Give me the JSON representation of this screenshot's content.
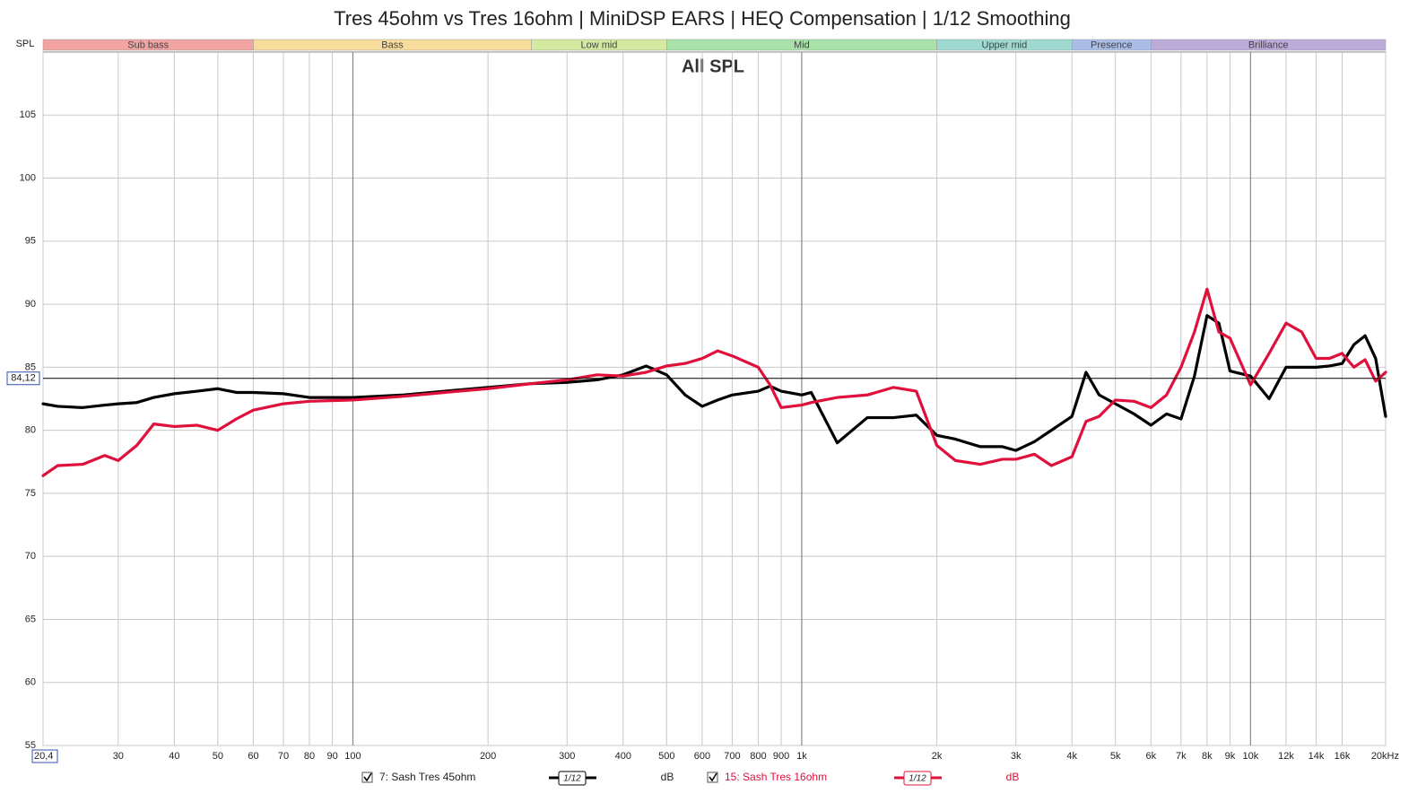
{
  "chart_data": {
    "type": "line",
    "title": "Tres 45ohm vs Tres 16ohm | MiniDSP EARS | HEQ Compensation | 1/12 Smoothing",
    "annotation": "All SPL",
    "y_label": "SPL",
    "log_x": true,
    "grid": true,
    "xlim": [
      20.4,
      20000
    ],
    "ylim": [
      55,
      110
    ],
    "yticks": [
      55,
      60,
      65,
      70,
      75,
      80,
      85,
      90,
      95,
      100,
      105
    ],
    "xticks": [
      {
        "value": 20.4,
        "label": "20,4"
      },
      30,
      40,
      50,
      60,
      70,
      80,
      90,
      100,
      200,
      300,
      400,
      500,
      600,
      700,
      800,
      900,
      {
        "value": 1000,
        "label": "1k"
      },
      {
        "value": 2000,
        "label": "2k"
      },
      {
        "value": 3000,
        "label": "3k"
      },
      {
        "value": 4000,
        "label": "4k"
      },
      {
        "value": 5000,
        "label": "5k"
      },
      {
        "value": 6000,
        "label": "6k"
      },
      {
        "value": 7000,
        "label": "7k"
      },
      {
        "value": 8000,
        "label": "8k"
      },
      {
        "value": 9000,
        "label": "9k"
      },
      {
        "value": 10000,
        "label": "10k"
      },
      {
        "value": 12000,
        "label": "12k"
      },
      {
        "value": 14000,
        "label": "14k"
      },
      {
        "value": 16000,
        "label": "16k"
      },
      {
        "value": 20000,
        "label": "20kHz"
      }
    ],
    "cursor": {
      "value": 84.12,
      "label": "84,12"
    },
    "bands": [
      {
        "name": "Sub bass",
        "from": 20.4,
        "to": 60,
        "color": "#f4a3a3"
      },
      {
        "name": "Bass",
        "from": 60,
        "to": 250,
        "color": "#f9dd9c"
      },
      {
        "name": "Low mid",
        "from": 250,
        "to": 500,
        "color": "#d3eaa0"
      },
      {
        "name": "Mid",
        "from": 500,
        "to": 2000,
        "color": "#a9e2a9"
      },
      {
        "name": "Upper mid",
        "from": 2000,
        "to": 4000,
        "color": "#9fdad2"
      },
      {
        "name": "Presence",
        "from": 4000,
        "to": 6000,
        "color": "#a9bde6"
      },
      {
        "name": "Brilliance",
        "from": 6000,
        "to": 20000,
        "color": "#bcaad8"
      }
    ],
    "x": [
      20.4,
      22,
      25,
      28,
      30,
      33,
      36,
      40,
      45,
      50,
      55,
      60,
      70,
      80,
      100,
      130,
      160,
      200,
      250,
      300,
      350,
      400,
      450,
      500,
      550,
      600,
      650,
      700,
      800,
      850,
      900,
      1000,
      1050,
      1200,
      1400,
      1600,
      1800,
      2000,
      2200,
      2500,
      2800,
      3000,
      3300,
      3600,
      4000,
      4300,
      4600,
      5000,
      5500,
      6000,
      6500,
      7000,
      7500,
      8000,
      8500,
      9000,
      10000,
      11000,
      12000,
      13000,
      14000,
      15000,
      16000,
      17000,
      18000,
      19000,
      20000
    ],
    "series": [
      {
        "name": "7: Sash Tres 45ohm",
        "color": "#000000",
        "smoothing": "1/12",
        "unit": "dB",
        "values": [
          82.1,
          81.9,
          81.8,
          82.0,
          82.1,
          82.2,
          82.6,
          82.9,
          83.1,
          83.3,
          83.0,
          83.0,
          82.9,
          82.6,
          82.6,
          82.8,
          83.1,
          83.4,
          83.7,
          83.8,
          84.0,
          84.4,
          85.1,
          84.4,
          82.8,
          81.9,
          82.4,
          82.8,
          83.1,
          83.5,
          83.1,
          82.8,
          83.0,
          79.0,
          81.0,
          81.0,
          81.2,
          79.6,
          79.3,
          78.7,
          78.7,
          78.4,
          79.1,
          80.0,
          81.1,
          84.6,
          82.8,
          82.1,
          81.3,
          80.4,
          81.3,
          80.9,
          84.3,
          89.1,
          88.5,
          84.7,
          84.3,
          82.5,
          85.0,
          85.0,
          85.0,
          85.1,
          85.3,
          86.8,
          87.5,
          85.7,
          81.1
        ]
      },
      {
        "name": "15: Sash Tres 16ohm",
        "color": "#e0103c",
        "smoothing": "1/12",
        "unit": "dB",
        "values": [
          76.4,
          77.2,
          77.3,
          78.0,
          77.6,
          78.8,
          80.5,
          80.3,
          80.4,
          80.0,
          80.9,
          81.6,
          82.1,
          82.3,
          82.4,
          82.7,
          83.0,
          83.3,
          83.7,
          84.0,
          84.4,
          84.3,
          84.6,
          85.1,
          85.3,
          85.7,
          86.3,
          85.9,
          85.0,
          83.6,
          81.8,
          82.0,
          82.2,
          82.6,
          82.8,
          83.4,
          83.1,
          78.8,
          77.6,
          77.3,
          77.7,
          77.7,
          78.1,
          77.2,
          77.9,
          80.7,
          81.1,
          82.4,
          82.3,
          81.8,
          82.8,
          85.0,
          87.8,
          91.2,
          87.8,
          87.3,
          83.6,
          86.1,
          88.5,
          87.8,
          85.7,
          85.7,
          86.1,
          85.0,
          85.6,
          83.9,
          84.6
        ]
      }
    ]
  }
}
